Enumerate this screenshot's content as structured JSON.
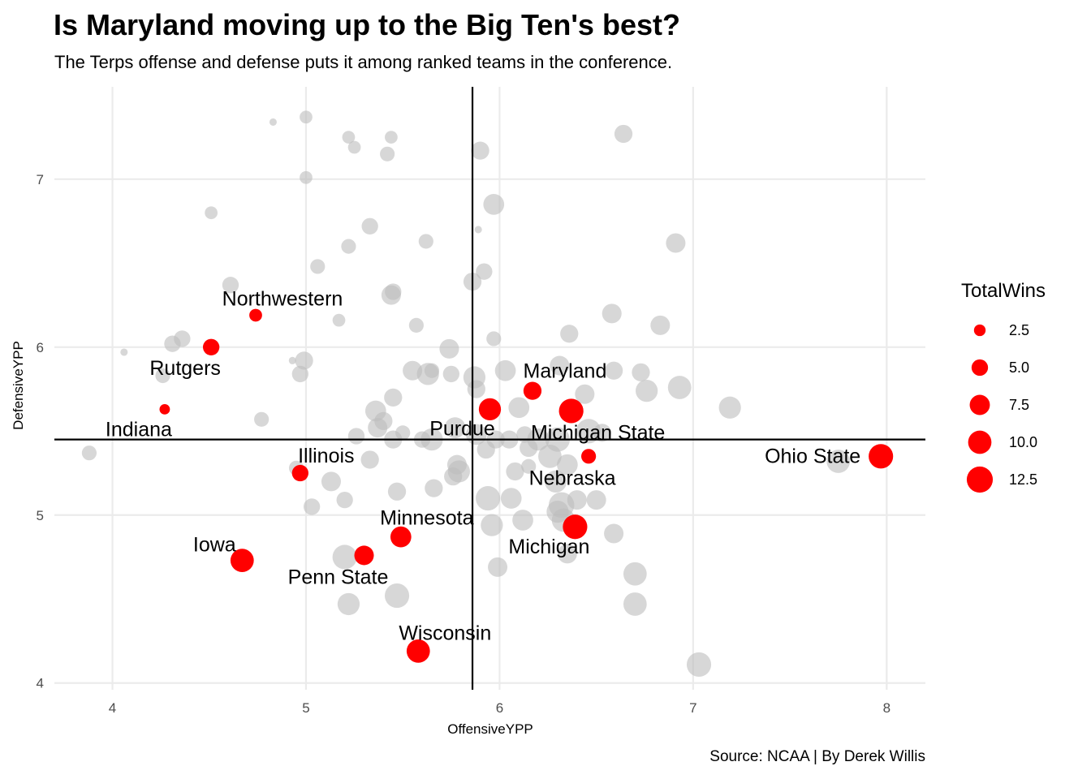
{
  "title": "Is Maryland moving up to the Big Ten's best?",
  "subtitle": "The Terps offense and defense puts it among ranked teams in the conference.",
  "caption": "Source: NCAA | By Derek Willis",
  "colors": {
    "highlight": "#ff0000",
    "background_points": "#bdbdbd",
    "grid": "#ebebeb",
    "reference_lines": "#000000"
  },
  "chart_data": {
    "type": "scatter",
    "xlabel": "OffensiveYPP",
    "ylabel": "DefensiveYPP",
    "xlim": [
      3.7,
      8.2
    ],
    "ylim": [
      3.96,
      7.55
    ],
    "x_ticks": [
      4,
      5,
      6,
      7,
      8
    ],
    "y_ticks": [
      4,
      5,
      6,
      7
    ],
    "grid": true,
    "reference_lines": {
      "vertical_x": 5.86,
      "horizontal_y": 5.45
    },
    "legend": {
      "title": "TotalWins",
      "position": "right",
      "entries": [
        {
          "label": "2.5",
          "value": 2.5
        },
        {
          "label": "5.0",
          "value": 5.0
        },
        {
          "label": "7.5",
          "value": 7.5
        },
        {
          "label": "10.0",
          "value": 10.0
        },
        {
          "label": "12.5",
          "value": 12.5
        }
      ]
    },
    "size_range": [
      0,
      14
    ],
    "highlighted": [
      {
        "team": "Northwestern",
        "x": 4.74,
        "y": 6.19,
        "wins": 3
      },
      {
        "team": "Rutgers",
        "x": 4.51,
        "y": 6.0,
        "wins": 5
      },
      {
        "team": "Indiana",
        "x": 4.27,
        "y": 5.63,
        "wins": 2
      },
      {
        "team": "Illinois",
        "x": 4.97,
        "y": 5.25,
        "wins": 5
      },
      {
        "team": "Iowa",
        "x": 4.67,
        "y": 4.73,
        "wins": 10
      },
      {
        "team": "Penn State",
        "x": 5.3,
        "y": 4.76,
        "wins": 7
      },
      {
        "team": "Minnesota",
        "x": 5.49,
        "y": 4.87,
        "wins": 8
      },
      {
        "team": "Wisconsin",
        "x": 5.58,
        "y": 4.19,
        "wins": 10
      },
      {
        "team": "Purdue",
        "x": 5.95,
        "y": 5.63,
        "wins": 9
      },
      {
        "team": "Maryland",
        "x": 6.17,
        "y": 5.74,
        "wins": 6
      },
      {
        "team": "Michigan State",
        "x": 6.37,
        "y": 5.62,
        "wins": 11
      },
      {
        "team": "Nebraska",
        "x": 6.46,
        "y": 5.35,
        "wins": 4
      },
      {
        "team": "Michigan",
        "x": 6.39,
        "y": 4.93,
        "wins": 11
      },
      {
        "team": "Ohio State",
        "x": 7.97,
        "y": 5.35,
        "wins": 11
      }
    ],
    "others": [
      {
        "x": 3.88,
        "y": 5.37,
        "wins": 4
      },
      {
        "x": 4.06,
        "y": 5.97,
        "wins": 1
      },
      {
        "x": 4.26,
        "y": 5.83,
        "wins": 4
      },
      {
        "x": 4.31,
        "y": 6.02,
        "wins": 5
      },
      {
        "x": 4.36,
        "y": 6.05,
        "wins": 5
      },
      {
        "x": 4.51,
        "y": 6.8,
        "wins": 3
      },
      {
        "x": 4.61,
        "y": 6.37,
        "wins": 5
      },
      {
        "x": 4.77,
        "y": 5.57,
        "wins": 4
      },
      {
        "x": 4.83,
        "y": 7.34,
        "wins": 1
      },
      {
        "x": 4.93,
        "y": 5.92,
        "wins": 1
      },
      {
        "x": 4.95,
        "y": 5.28,
        "wins": 4
      },
      {
        "x": 4.97,
        "y": 5.84,
        "wins": 5
      },
      {
        "x": 4.99,
        "y": 5.92,
        "wins": 6
      },
      {
        "x": 5.0,
        "y": 7.37,
        "wins": 3
      },
      {
        "x": 5.0,
        "y": 7.01,
        "wins": 3
      },
      {
        "x": 5.03,
        "y": 5.05,
        "wins": 5
      },
      {
        "x": 5.06,
        "y": 6.48,
        "wins": 4
      },
      {
        "x": 5.13,
        "y": 5.2,
        "wins": 7
      },
      {
        "x": 5.17,
        "y": 6.16,
        "wins": 3
      },
      {
        "x": 5.2,
        "y": 5.09,
        "wins": 5
      },
      {
        "x": 5.2,
        "y": 4.75,
        "wins": 11
      },
      {
        "x": 5.22,
        "y": 7.25,
        "wins": 3
      },
      {
        "x": 5.22,
        "y": 6.6,
        "wins": 4
      },
      {
        "x": 5.22,
        "y": 4.47,
        "wins": 9
      },
      {
        "x": 5.25,
        "y": 7.19,
        "wins": 3
      },
      {
        "x": 5.26,
        "y": 5.47,
        "wins": 5
      },
      {
        "x": 5.33,
        "y": 6.72,
        "wins": 5
      },
      {
        "x": 5.33,
        "y": 5.33,
        "wins": 6
      },
      {
        "x": 5.36,
        "y": 5.62,
        "wins": 8
      },
      {
        "x": 5.37,
        "y": 5.52,
        "wins": 7
      },
      {
        "x": 5.4,
        "y": 5.56,
        "wins": 6
      },
      {
        "x": 5.42,
        "y": 7.15,
        "wins": 4
      },
      {
        "x": 5.44,
        "y": 7.25,
        "wins": 3
      },
      {
        "x": 5.44,
        "y": 6.31,
        "wins": 7
      },
      {
        "x": 5.45,
        "y": 6.33,
        "wins": 5
      },
      {
        "x": 5.45,
        "y": 5.7,
        "wins": 6
      },
      {
        "x": 5.45,
        "y": 5.45,
        "wins": 6
      },
      {
        "x": 5.47,
        "y": 5.14,
        "wins": 6
      },
      {
        "x": 5.47,
        "y": 4.52,
        "wins": 11
      },
      {
        "x": 5.5,
        "y": 5.49,
        "wins": 4
      },
      {
        "x": 5.55,
        "y": 5.86,
        "wins": 7
      },
      {
        "x": 5.57,
        "y": 6.13,
        "wins": 4
      },
      {
        "x": 5.6,
        "y": 5.45,
        "wins": 5
      },
      {
        "x": 5.62,
        "y": 6.63,
        "wins": 4
      },
      {
        "x": 5.63,
        "y": 5.84,
        "wins": 9
      },
      {
        "x": 5.65,
        "y": 5.86,
        "wins": 4
      },
      {
        "x": 5.65,
        "y": 5.45,
        "wins": 9
      },
      {
        "x": 5.66,
        "y": 5.16,
        "wins": 6
      },
      {
        "x": 5.74,
        "y": 5.99,
        "wins": 7
      },
      {
        "x": 5.75,
        "y": 5.84,
        "wins": 5
      },
      {
        "x": 5.76,
        "y": 5.23,
        "wins": 6
      },
      {
        "x": 5.77,
        "y": 5.52,
        "wins": 8
      },
      {
        "x": 5.78,
        "y": 5.3,
        "wins": 7
      },
      {
        "x": 5.79,
        "y": 5.26,
        "wins": 9
      },
      {
        "x": 5.86,
        "y": 6.39,
        "wins": 6
      },
      {
        "x": 5.87,
        "y": 5.82,
        "wins": 9
      },
      {
        "x": 5.88,
        "y": 5.75,
        "wins": 6
      },
      {
        "x": 5.88,
        "y": 5.48,
        "wins": 8
      },
      {
        "x": 5.89,
        "y": 6.7,
        "wins": 1
      },
      {
        "x": 5.9,
        "y": 7.17,
        "wins": 6
      },
      {
        "x": 5.92,
        "y": 6.45,
        "wins": 5
      },
      {
        "x": 5.93,
        "y": 5.39,
        "wins": 6
      },
      {
        "x": 5.94,
        "y": 5.1,
        "wins": 11
      },
      {
        "x": 5.96,
        "y": 4.94,
        "wins": 9
      },
      {
        "x": 5.97,
        "y": 6.85,
        "wins": 8
      },
      {
        "x": 5.97,
        "y": 6.05,
        "wins": 4
      },
      {
        "x": 5.98,
        "y": 5.45,
        "wins": 6
      },
      {
        "x": 5.99,
        "y": 4.69,
        "wins": 7
      },
      {
        "x": 6.03,
        "y": 5.86,
        "wins": 8
      },
      {
        "x": 6.05,
        "y": 5.45,
        "wins": 6
      },
      {
        "x": 6.06,
        "y": 5.1,
        "wins": 8
      },
      {
        "x": 6.08,
        "y": 5.26,
        "wins": 6
      },
      {
        "x": 6.1,
        "y": 5.64,
        "wins": 8
      },
      {
        "x": 6.12,
        "y": 4.97,
        "wins": 8
      },
      {
        "x": 6.13,
        "y": 5.48,
        "wins": 5
      },
      {
        "x": 6.15,
        "y": 5.4,
        "wins": 6
      },
      {
        "x": 6.15,
        "y": 5.29,
        "wins": 4
      },
      {
        "x": 6.2,
        "y": 5.45,
        "wins": 9
      },
      {
        "x": 6.26,
        "y": 5.35,
        "wins": 10
      },
      {
        "x": 6.29,
        "y": 5.2,
        "wins": 9
      },
      {
        "x": 6.3,
        "y": 5.02,
        "wins": 9
      },
      {
        "x": 6.3,
        "y": 5.45,
        "wins": 11
      },
      {
        "x": 6.31,
        "y": 5.89,
        "wins": 7
      },
      {
        "x": 6.32,
        "y": 5.06,
        "wins": 12
      },
      {
        "x": 6.33,
        "y": 4.97,
        "wins": 10
      },
      {
        "x": 6.35,
        "y": 5.3,
        "wins": 8
      },
      {
        "x": 6.35,
        "y": 4.77,
        "wins": 7
      },
      {
        "x": 6.36,
        "y": 6.08,
        "wins": 6
      },
      {
        "x": 6.4,
        "y": 5.09,
        "wins": 7
      },
      {
        "x": 6.44,
        "y": 5.72,
        "wins": 7
      },
      {
        "x": 6.46,
        "y": 5.5,
        "wins": 11
      },
      {
        "x": 6.5,
        "y": 5.09,
        "wins": 7
      },
      {
        "x": 6.53,
        "y": 5.49,
        "wins": 6
      },
      {
        "x": 6.58,
        "y": 6.2,
        "wins": 7
      },
      {
        "x": 6.59,
        "y": 5.86,
        "wins": 6
      },
      {
        "x": 6.59,
        "y": 4.89,
        "wins": 7
      },
      {
        "x": 6.64,
        "y": 7.27,
        "wins": 6
      },
      {
        "x": 6.7,
        "y": 4.65,
        "wins": 10
      },
      {
        "x": 6.7,
        "y": 4.47,
        "wins": 10
      },
      {
        "x": 6.73,
        "y": 5.85,
        "wins": 6
      },
      {
        "x": 6.76,
        "y": 5.74,
        "wins": 9
      },
      {
        "x": 6.83,
        "y": 6.13,
        "wins": 7
      },
      {
        "x": 6.91,
        "y": 6.62,
        "wins": 7
      },
      {
        "x": 6.93,
        "y": 5.76,
        "wins": 10
      },
      {
        "x": 7.03,
        "y": 4.11,
        "wins": 11
      },
      {
        "x": 7.19,
        "y": 5.64,
        "wins": 9
      },
      {
        "x": 7.75,
        "y": 5.32,
        "wins": 10
      }
    ]
  }
}
